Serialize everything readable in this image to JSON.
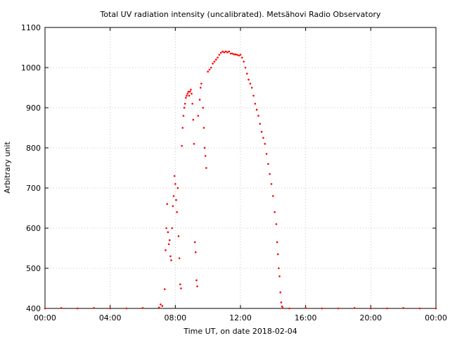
{
  "chart_data": {
    "type": "scatter",
    "title": "Total UV radiation intensity (uncalibrated). Metsähovi Radio Observatory",
    "xlabel": "Time UT, on date 2018-02-04",
    "ylabel": "Arbitrary unit",
    "xlim": [
      "00:00",
      "24:00"
    ],
    "ylim": [
      400,
      1100
    ],
    "grid": true,
    "marker_color": "#ff0000",
    "x_ticks": [
      "00:00",
      "04:00",
      "08:00",
      "12:00",
      "16:00",
      "20:00",
      "00:00"
    ],
    "y_ticks": [
      400,
      500,
      600,
      700,
      800,
      900,
      1000,
      1100
    ],
    "series": [
      {
        "x_unit": "hours UT",
        "points": [
          [
            0.0,
            400
          ],
          [
            1.0,
            401
          ],
          [
            2.0,
            400
          ],
          [
            3.0,
            401
          ],
          [
            4.0,
            400
          ],
          [
            5.0,
            400
          ],
          [
            6.0,
            401
          ],
          [
            7.0,
            402
          ],
          [
            7.1,
            410
          ],
          [
            7.2,
            406
          ],
          [
            7.35,
            448
          ],
          [
            7.4,
            545
          ],
          [
            7.45,
            600
          ],
          [
            7.5,
            660
          ],
          [
            7.55,
            590
          ],
          [
            7.6,
            560
          ],
          [
            7.65,
            570
          ],
          [
            7.7,
            530
          ],
          [
            7.75,
            520
          ],
          [
            7.8,
            600
          ],
          [
            7.85,
            655
          ],
          [
            7.9,
            680
          ],
          [
            7.95,
            730
          ],
          [
            8.0,
            710
          ],
          [
            8.05,
            670
          ],
          [
            8.1,
            640
          ],
          [
            8.15,
            700
          ],
          [
            8.2,
            580
          ],
          [
            8.25,
            525
          ],
          [
            8.3,
            460
          ],
          [
            8.35,
            450
          ],
          [
            8.4,
            805
          ],
          [
            8.45,
            850
          ],
          [
            8.5,
            880
          ],
          [
            8.55,
            900
          ],
          [
            8.6,
            910
          ],
          [
            8.65,
            925
          ],
          [
            8.7,
            930
          ],
          [
            8.75,
            935
          ],
          [
            8.8,
            940
          ],
          [
            8.85,
            930
          ],
          [
            8.9,
            940
          ],
          [
            8.95,
            945
          ],
          [
            9.0,
            935
          ],
          [
            9.05,
            910
          ],
          [
            9.1,
            870
          ],
          [
            9.15,
            810
          ],
          [
            9.2,
            565
          ],
          [
            9.25,
            540
          ],
          [
            9.3,
            470
          ],
          [
            9.35,
            455
          ],
          [
            9.4,
            880
          ],
          [
            9.5,
            920
          ],
          [
            9.55,
            950
          ],
          [
            9.6,
            960
          ],
          [
            9.7,
            900
          ],
          [
            9.75,
            850
          ],
          [
            9.8,
            800
          ],
          [
            9.85,
            780
          ],
          [
            9.9,
            750
          ],
          [
            10.0,
            990
          ],
          [
            10.1,
            995
          ],
          [
            10.2,
            1000
          ],
          [
            10.3,
            1010
          ],
          [
            10.4,
            1015
          ],
          [
            10.5,
            1020
          ],
          [
            10.6,
            1025
          ],
          [
            10.7,
            1032
          ],
          [
            10.8,
            1037
          ],
          [
            10.9,
            1040
          ],
          [
            11.0,
            1038
          ],
          [
            11.1,
            1040
          ],
          [
            11.2,
            1038
          ],
          [
            11.3,
            1040
          ],
          [
            11.4,
            1035
          ],
          [
            11.5,
            1035
          ],
          [
            11.6,
            1033
          ],
          [
            11.7,
            1033
          ],
          [
            11.8,
            1032
          ],
          [
            11.9,
            1030
          ],
          [
            12.0,
            1032
          ],
          [
            12.1,
            1025
          ],
          [
            12.2,
            1015
          ],
          [
            12.3,
            1000
          ],
          [
            12.4,
            985
          ],
          [
            12.5,
            970
          ],
          [
            12.6,
            960
          ],
          [
            12.7,
            950
          ],
          [
            12.8,
            930
          ],
          [
            12.9,
            910
          ],
          [
            13.0,
            895
          ],
          [
            13.1,
            880
          ],
          [
            13.2,
            860
          ],
          [
            13.3,
            840
          ],
          [
            13.4,
            825
          ],
          [
            13.5,
            810
          ],
          [
            13.6,
            785
          ],
          [
            13.7,
            760
          ],
          [
            13.8,
            735
          ],
          [
            13.9,
            710
          ],
          [
            14.0,
            680
          ],
          [
            14.1,
            640
          ],
          [
            14.2,
            610
          ],
          [
            14.25,
            565
          ],
          [
            14.3,
            535
          ],
          [
            14.35,
            500
          ],
          [
            14.4,
            480
          ],
          [
            14.45,
            440
          ],
          [
            14.5,
            415
          ],
          [
            14.55,
            405
          ],
          [
            14.6,
            401
          ],
          [
            15.0,
            400
          ],
          [
            16.0,
            401
          ],
          [
            17.0,
            400
          ],
          [
            18.0,
            400
          ],
          [
            19.0,
            401
          ],
          [
            20.0,
            400
          ],
          [
            21.0,
            400
          ],
          [
            22.0,
            401
          ],
          [
            23.0,
            400
          ],
          [
            24.0,
            400
          ]
        ]
      }
    ]
  }
}
